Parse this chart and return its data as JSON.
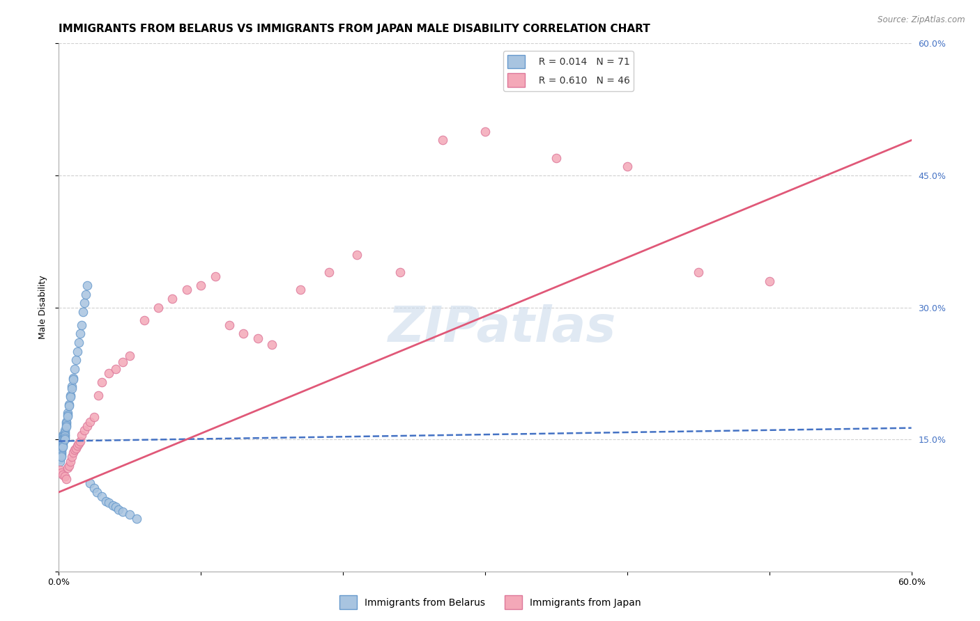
{
  "title": "IMMIGRANTS FROM BELARUS VS IMMIGRANTS FROM JAPAN MALE DISABILITY CORRELATION CHART",
  "source": "Source: ZipAtlas.com",
  "ylabel": "Male Disability",
  "xlim": [
    0.0,
    0.6
  ],
  "ylim": [
    0.0,
    0.6
  ],
  "right_ytick_labels": [
    "60.0%",
    "45.0%",
    "30.0%",
    "15.0%"
  ],
  "right_ytick_positions": [
    0.6,
    0.45,
    0.3,
    0.15
  ],
  "watermark": "ZIPatlas",
  "legend_R1": "R = 0.014",
  "legend_N1": "N = 71",
  "legend_R2": "R = 0.610",
  "legend_N2": "N = 46",
  "series1_color": "#a8c4e0",
  "series2_color": "#f4a8b8",
  "trendline1_color": "#4472c4",
  "trendline2_color": "#e05878",
  "belarus_x": [
    0.001,
    0.001,
    0.001,
    0.001,
    0.001,
    0.001,
    0.001,
    0.001,
    0.001,
    0.001,
    0.002,
    0.002,
    0.002,
    0.002,
    0.002,
    0.002,
    0.002,
    0.002,
    0.002,
    0.002,
    0.003,
    0.003,
    0.003,
    0.003,
    0.003,
    0.003,
    0.003,
    0.003,
    0.004,
    0.004,
    0.004,
    0.004,
    0.004,
    0.004,
    0.005,
    0.005,
    0.005,
    0.005,
    0.006,
    0.006,
    0.006,
    0.007,
    0.007,
    0.008,
    0.008,
    0.009,
    0.009,
    0.01,
    0.01,
    0.011,
    0.012,
    0.013,
    0.014,
    0.015,
    0.016,
    0.017,
    0.018,
    0.019,
    0.02,
    0.022,
    0.025,
    0.027,
    0.03,
    0.033,
    0.035,
    0.038,
    0.04,
    0.042,
    0.045,
    0.05,
    0.055
  ],
  "belarus_y": [
    0.145,
    0.143,
    0.141,
    0.139,
    0.137,
    0.135,
    0.133,
    0.13,
    0.128,
    0.125,
    0.148,
    0.146,
    0.144,
    0.142,
    0.14,
    0.138,
    0.136,
    0.134,
    0.132,
    0.13,
    0.155,
    0.153,
    0.151,
    0.149,
    0.147,
    0.145,
    0.143,
    0.141,
    0.16,
    0.158,
    0.156,
    0.154,
    0.152,
    0.15,
    0.17,
    0.168,
    0.166,
    0.164,
    0.18,
    0.178,
    0.176,
    0.19,
    0.188,
    0.2,
    0.198,
    0.21,
    0.208,
    0.22,
    0.218,
    0.23,
    0.24,
    0.25,
    0.26,
    0.27,
    0.28,
    0.295,
    0.305,
    0.315,
    0.325,
    0.1,
    0.095,
    0.09,
    0.085,
    0.08,
    0.078,
    0.075,
    0.073,
    0.07,
    0.068,
    0.065,
    0.06
  ],
  "japan_x": [
    0.001,
    0.002,
    0.003,
    0.004,
    0.005,
    0.006,
    0.007,
    0.008,
    0.009,
    0.01,
    0.011,
    0.012,
    0.013,
    0.014,
    0.015,
    0.016,
    0.018,
    0.02,
    0.022,
    0.025,
    0.028,
    0.03,
    0.035,
    0.04,
    0.045,
    0.05,
    0.06,
    0.07,
    0.08,
    0.09,
    0.1,
    0.11,
    0.12,
    0.13,
    0.14,
    0.15,
    0.17,
    0.19,
    0.21,
    0.24,
    0.27,
    0.3,
    0.35,
    0.4,
    0.45,
    0.5
  ],
  "japan_y": [
    0.115,
    0.112,
    0.11,
    0.108,
    0.105,
    0.118,
    0.12,
    0.125,
    0.13,
    0.135,
    0.138,
    0.14,
    0.143,
    0.145,
    0.148,
    0.155,
    0.16,
    0.165,
    0.17,
    0.175,
    0.2,
    0.215,
    0.225,
    0.23,
    0.238,
    0.245,
    0.285,
    0.3,
    0.31,
    0.32,
    0.325,
    0.335,
    0.28,
    0.27,
    0.265,
    0.258,
    0.32,
    0.34,
    0.36,
    0.34,
    0.49,
    0.5,
    0.47,
    0.46,
    0.34,
    0.33
  ],
  "trendline1_x": [
    0.0,
    0.6
  ],
  "trendline1_y": [
    0.148,
    0.163
  ],
  "trendline2_x": [
    0.0,
    0.6
  ],
  "trendline2_y": [
    0.09,
    0.49
  ],
  "grid_color": "#d0d0d0",
  "background_color": "#ffffff",
  "title_fontsize": 11,
  "axis_label_fontsize": 9,
  "tick_fontsize": 9,
  "legend_fontsize": 10,
  "marker_size": 9
}
